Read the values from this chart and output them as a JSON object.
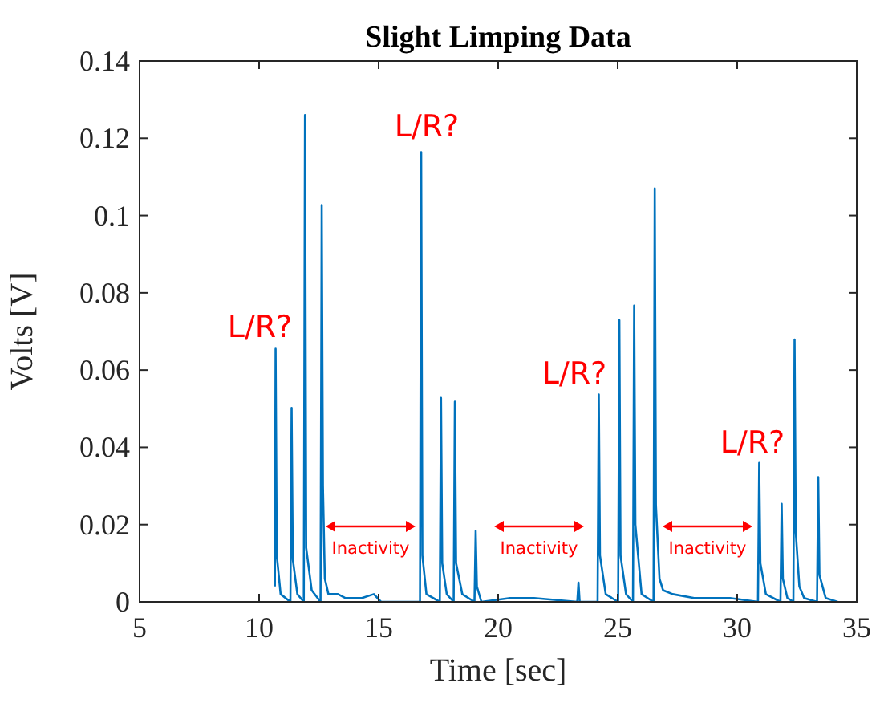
{
  "chart_data": {
    "type": "line",
    "title": "Slight Limping Data",
    "xlabel": "Time [sec]",
    "ylabel": "Volts [V]",
    "xlim": [
      5,
      35
    ],
    "xticks": [
      5,
      10,
      15,
      20,
      25,
      30,
      35
    ],
    "ylim": [
      0,
      0.14
    ],
    "yticks": [
      0,
      0.02,
      0.04,
      0.06,
      0.08,
      0.1,
      0.12,
      0.14
    ],
    "grid": false,
    "series": [
      {
        "color": "#0072bd",
        "x": [
          10.66,
          10.69,
          10.74,
          10.9,
          11.31,
          11.36,
          11.41,
          11.6,
          11.87,
          11.92,
          11.97,
          12.2,
          12.57,
          12.62,
          12.67,
          12.75,
          12.9,
          13.3,
          13.6,
          14.3,
          14.8,
          15.1,
          16.73,
          16.78,
          16.83,
          17.0,
          17.56,
          17.61,
          17.66,
          17.85,
          18.14,
          18.19,
          18.24,
          18.5,
          19.01,
          19.06,
          19.11,
          19.3,
          20.5,
          21.5,
          23.31,
          23.36,
          23.41,
          24.16,
          24.21,
          24.26,
          24.5,
          25.02,
          25.07,
          25.12,
          25.35,
          25.64,
          25.69,
          25.74,
          26.0,
          26.5,
          26.55,
          26.6,
          26.75,
          26.9,
          27.3,
          28.2,
          29.7,
          30.87,
          30.92,
          30.97,
          31.2,
          31.81,
          31.86,
          31.91,
          32.1,
          32.35,
          32.4,
          32.45,
          32.6,
          32.8,
          33.34,
          33.39,
          33.44,
          33.7,
          34.2
        ],
        "values": [
          0.004,
          0.0655,
          0.012,
          0.002,
          0,
          0.0502,
          0.011,
          0.002,
          0,
          0.126,
          0.014,
          0.003,
          0,
          0.1027,
          0.03,
          0.006,
          0.002,
          0.002,
          0.001,
          0.001,
          0.002,
          0,
          0,
          0.1164,
          0.012,
          0.002,
          0,
          0.0528,
          0.01,
          0.002,
          0,
          0.0518,
          0.01,
          0.002,
          0,
          0.0184,
          0.004,
          0,
          0.001,
          0.001,
          0,
          0.005,
          0,
          0,
          0.0537,
          0.012,
          0.002,
          0,
          0.0729,
          0.012,
          0.002,
          0,
          0.0767,
          0.02,
          0.002,
          0,
          0.107,
          0.025,
          0.006,
          0.003,
          0.002,
          0.001,
          0.001,
          0,
          0.036,
          0.01,
          0.002,
          0,
          0.0254,
          0.006,
          0.001,
          0,
          0.0679,
          0.018,
          0.004,
          0.001,
          0,
          0.0323,
          0.007,
          0.001,
          0
        ]
      }
    ],
    "annotations": [
      "L/R?",
      "L/R?",
      "L/R?",
      "L/R?",
      "Inactivity",
      "Inactivity",
      "Inactivity"
    ]
  }
}
